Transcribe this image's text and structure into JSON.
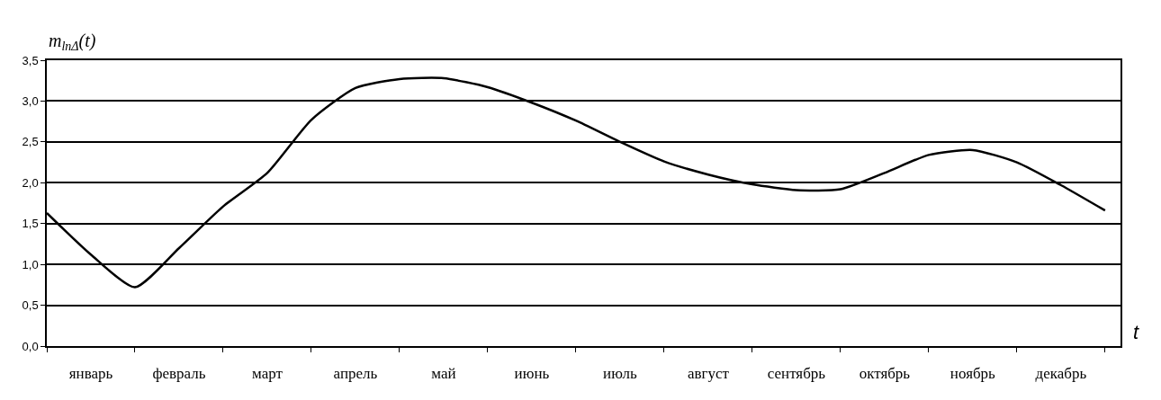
{
  "chart_data": {
    "type": "line",
    "ylabel": "m$_{lnΔ}$(t)",
    "xlabel": "t",
    "categories": [
      null,
      "январь",
      null,
      "февраль",
      null,
      "март",
      null,
      "апрель",
      null,
      "май",
      null,
      "июнь",
      null,
      "июль",
      null,
      "август",
      null,
      "сентябрь",
      null,
      "октябрь",
      null,
      "ноябрь",
      null,
      "декабрь",
      null
    ],
    "series": [
      {
        "color": "#000000",
        "values": [
          1.63,
          1.12,
          0.72,
          1.2,
          1.71,
          2.12,
          2.77,
          3.16,
          3.27,
          3.28,
          3.17,
          2.98,
          2.76,
          2.5,
          2.26,
          2.1,
          1.98,
          1.91,
          1.92,
          2.12,
          2.34,
          2.4,
          2.25,
          1.97,
          1.66
        ]
      }
    ],
    "ylim": [
      0,
      3.5
    ],
    "yticks": [
      {
        "value": 0,
        "label": "0,0"
      },
      {
        "value": 0.5,
        "label": "0,5"
      },
      {
        "value": 1,
        "label": "1,0"
      },
      {
        "value": 1.5,
        "label": "1,5"
      },
      {
        "value": 2,
        "label": "2,0"
      },
      {
        "value": 2.5,
        "label": "2,5"
      },
      {
        "value": 3,
        "label": "3,0"
      },
      {
        "value": 3.5,
        "label": "3,5"
      }
    ],
    "grid": "y",
    "marker": "none",
    "line_style": "solid"
  }
}
